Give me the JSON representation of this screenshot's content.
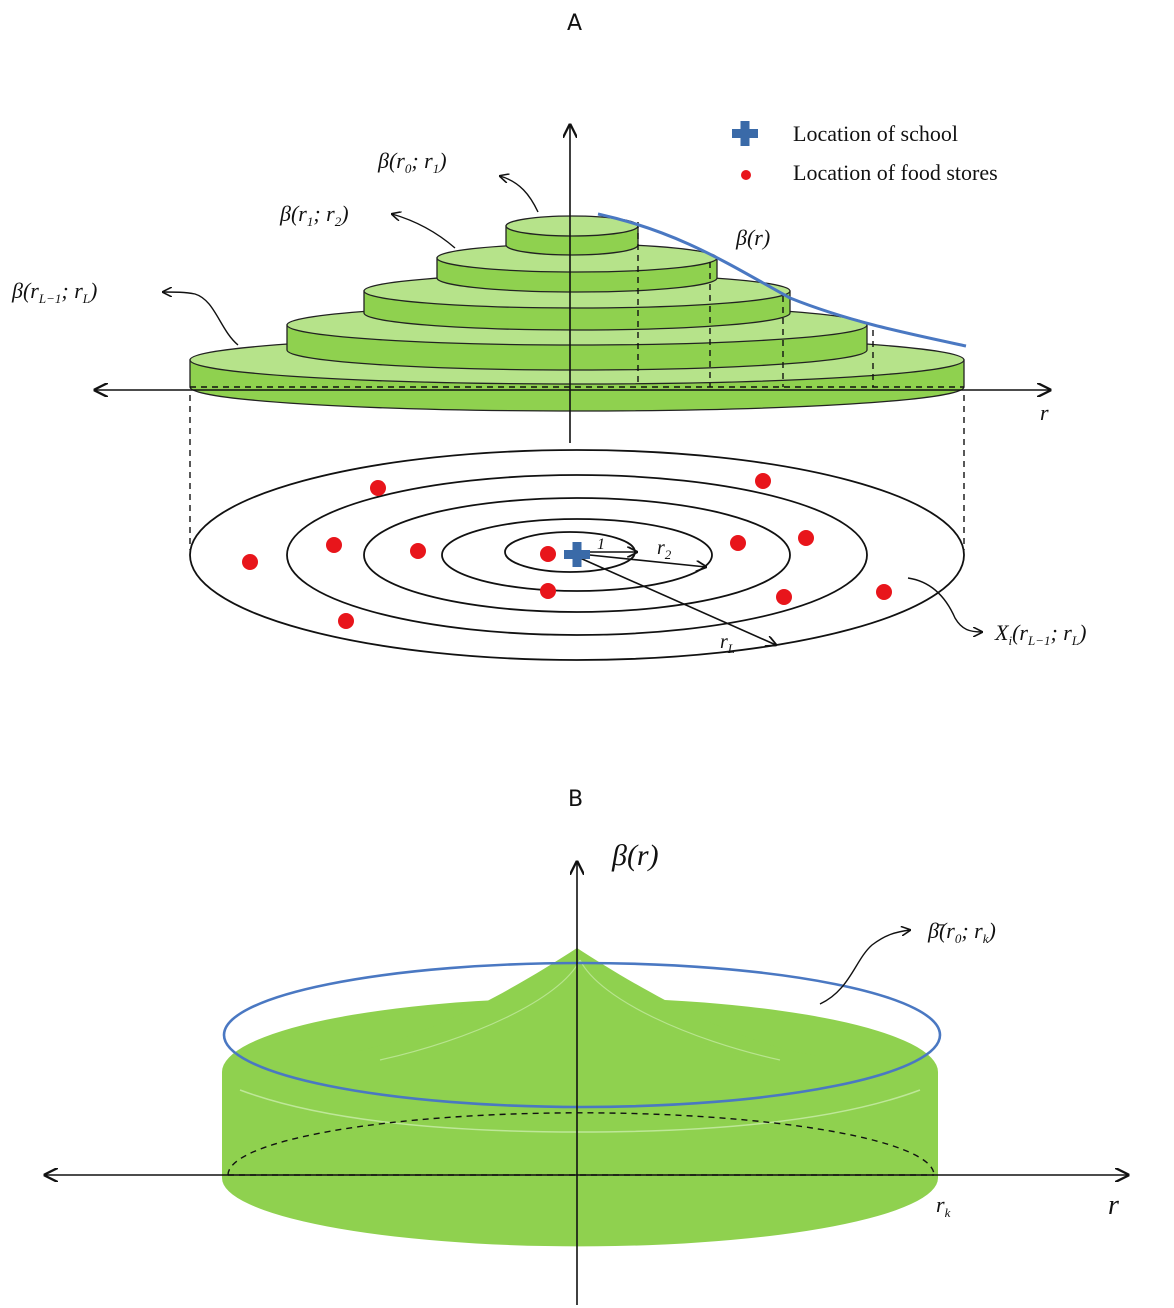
{
  "panels": {
    "a": {
      "label": "A"
    },
    "b": {
      "label": "B"
    }
  },
  "legend": {
    "school": {
      "label": "Location of school",
      "icon": "plus-icon",
      "color": "#3a6aa8"
    },
    "food_stores": {
      "label": "Location of food stores",
      "icon": "dot-icon",
      "color": "#e8151b"
    }
  },
  "colors": {
    "disk_side": "#8fd14f",
    "disk_top": "#b6e38a",
    "cone_fill": "#8fd14f",
    "curve": "#4a78c2",
    "store_dot": "#e8151b",
    "school_marker": "#3a6aa8"
  },
  "panel_a": {
    "annotations": {
      "beta_r0_r1": {
        "base": "β(r",
        "s1": "0",
        "mid": "; r",
        "s2": "1",
        "end": ")"
      },
      "beta_r1_r2": {
        "base": "β(r",
        "s1": "1",
        "mid": "; r",
        "s2": "2",
        "end": ")"
      },
      "beta_rL1_rL": {
        "base": "β(r",
        "s1": "L−1",
        "mid": "; r",
        "s2": "L",
        "end": ")"
      },
      "beta_r": "β(r)",
      "axis_r": "r",
      "ring_label": {
        "base": "X",
        "s0": "i",
        "open": "(r",
        "s1": "L−1",
        "mid": "; r",
        "s2": "L",
        "end": ")"
      },
      "radius_r1": "1",
      "radius_r2": {
        "base": "r",
        "sub": "2"
      },
      "radius_rL": {
        "base": "r",
        "sub": "L"
      }
    }
  },
  "panel_b": {
    "annotations": {
      "beta_r": "β(r)",
      "beta_bar": {
        "base": "β̄(r",
        "s1": "0",
        "mid": "; r",
        "s2": "k",
        "end": ")"
      },
      "rk": {
        "base": "r",
        "sub": "k"
      },
      "axis_r": "r"
    }
  }
}
